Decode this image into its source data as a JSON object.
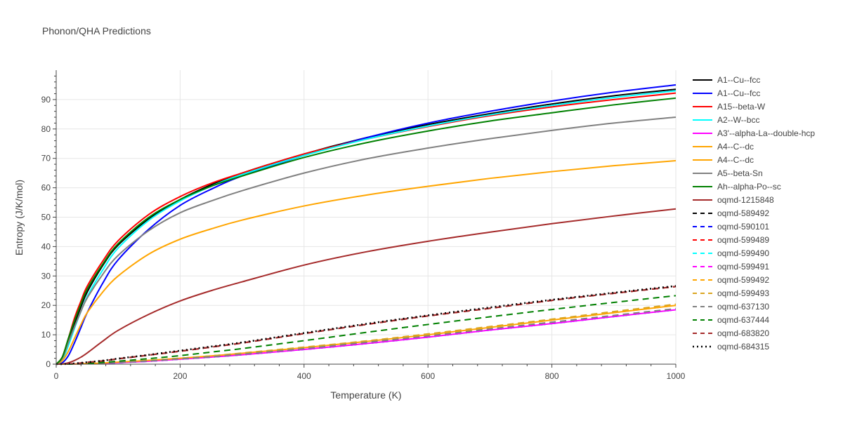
{
  "chart_data": {
    "type": "line",
    "title": "Phonon/QHA Predictions",
    "xlabel": "Temperature (K)",
    "ylabel": "Entropy (J/K/mol)",
    "xlim": [
      0,
      1000
    ],
    "ylim": [
      0,
      100
    ],
    "x_ticks": [
      0,
      200,
      400,
      600,
      800,
      1000
    ],
    "y_ticks": [
      0,
      10,
      20,
      30,
      40,
      50,
      60,
      70,
      80,
      90
    ],
    "grid": true,
    "legend_position": "right",
    "x": [
      0,
      10,
      20,
      30,
      40,
      50,
      75,
      100,
      150,
      200,
      250,
      300,
      400,
      500,
      600,
      700,
      800,
      900,
      1000
    ],
    "series": [
      {
        "name": "A1--Cu--fcc",
        "color": "#000000",
        "dash": "solid",
        "values": [
          0,
          2,
          8,
          14,
          19.5,
          24.5,
          33.5,
          40.5,
          49.5,
          56,
          61,
          65,
          71.5,
          77,
          81.5,
          85.2,
          88.5,
          91.3,
          93.5
        ]
      },
      {
        "name": "A1--Cu--fcc",
        "color": "#0000ff",
        "dash": "solid",
        "values": [
          0,
          0.5,
          3,
          7.5,
          12.5,
          17.5,
          27.5,
          35.5,
          46,
          54,
          59.5,
          64,
          71,
          77,
          82,
          86,
          89.5,
          92.5,
          95
        ]
      },
      {
        "name": "A15--beta-W",
        "color": "#ff0000",
        "dash": "solid",
        "values": [
          0,
          2.5,
          9,
          16,
          21.5,
          26.5,
          35,
          42,
          51,
          57,
          61.5,
          65,
          71.5,
          76.5,
          80.8,
          84.5,
          87.5,
          90,
          92.2
        ]
      },
      {
        "name": "A2--W--bcc",
        "color": "#00ffff",
        "dash": "solid",
        "values": [
          0,
          1.5,
          6.5,
          12.5,
          18,
          23,
          32,
          39.5,
          49,
          55.5,
          60.5,
          64.5,
          71,
          76.5,
          81,
          84.8,
          88,
          90.7,
          93
        ]
      },
      {
        "name": "A3'--alpha-La--double-hcp",
        "color": "#ff00ff",
        "dash": "solid",
        "values": [
          0,
          0,
          0,
          0.05,
          0.1,
          0.15,
          0.3,
          0.5,
          1.0,
          1.7,
          2.4,
          3.2,
          5.0,
          7.0,
          9.2,
          11.6,
          13.8,
          16.2,
          18.5
        ]
      },
      {
        "name": "A4--C--dc",
        "color": "#ffa500",
        "dash": "solid",
        "values": [
          0,
          0,
          0,
          0.05,
          0.1,
          0.2,
          0.4,
          0.7,
          1.3,
          2.0,
          2.8,
          3.7,
          5.6,
          7.7,
          10.0,
          12.5,
          15.0,
          17.5,
          20.0
        ]
      },
      {
        "name": "A4--C--dc",
        "color": "#ffa500",
        "dash": "solid",
        "values": [
          0,
          1.2,
          4.5,
          9,
          13.5,
          17.5,
          24.5,
          30,
          37.5,
          42.5,
          46,
          49,
          53.8,
          57.5,
          60.5,
          63.2,
          65.5,
          67.5,
          69.2
        ]
      },
      {
        "name": "A5--beta-Sn",
        "color": "#808080",
        "dash": "solid",
        "values": [
          0,
          2,
          7.5,
          13,
          18,
          22.5,
          30.5,
          37,
          45.5,
          51.5,
          55.5,
          59,
          65,
          69.8,
          73.5,
          76.7,
          79.5,
          82,
          84
        ]
      },
      {
        "name": "Ah--alpha-Po--sc",
        "color": "#008000",
        "dash": "solid",
        "values": [
          0,
          2.5,
          9,
          15,
          20.5,
          25.5,
          34,
          41,
          50,
          56,
          60.5,
          64,
          70.3,
          75.3,
          79.3,
          82.7,
          85.5,
          88.2,
          90.5
        ]
      },
      {
        "name": "oqmd-1215848",
        "color": "#a52a2a",
        "dash": "solid",
        "values": [
          0,
          0.1,
          0.5,
          1.3,
          2.4,
          3.8,
          7.8,
          11.5,
          17,
          21.5,
          25,
          28,
          33.7,
          38.2,
          41.8,
          44.9,
          47.8,
          50.4,
          52.8
        ]
      },
      {
        "name": "oqmd-589492",
        "color": "#000000",
        "dash": "dash",
        "values": [
          0,
          0,
          0.1,
          0.2,
          0.4,
          0.6,
          1.1,
          1.8,
          3.1,
          4.4,
          5.8,
          7.2,
          10.4,
          13.5,
          16.4,
          19.0,
          21.7,
          24.1,
          26.4
        ]
      },
      {
        "name": "oqmd-590101",
        "color": "#0000ff",
        "dash": "dash",
        "values": [
          0,
          0,
          0,
          0.05,
          0.1,
          0.15,
          0.3,
          0.5,
          1.0,
          1.7,
          2.4,
          3.2,
          5.0,
          7.0,
          9.2,
          11.6,
          13.8,
          16.2,
          18.5
        ]
      },
      {
        "name": "oqmd-599489",
        "color": "#ff0000",
        "dash": "dash",
        "values": [
          0,
          0,
          0.1,
          0.2,
          0.4,
          0.6,
          1.1,
          1.8,
          3.1,
          4.4,
          5.8,
          7.2,
          10.4,
          13.5,
          16.4,
          19.0,
          21.7,
          24.1,
          26.4
        ]
      },
      {
        "name": "oqmd-599490",
        "color": "#00ffff",
        "dash": "dash",
        "values": [
          0,
          0,
          0,
          0.05,
          0.1,
          0.15,
          0.3,
          0.5,
          1.0,
          1.7,
          2.4,
          3.2,
          5.0,
          7.0,
          9.2,
          11.6,
          13.8,
          16.2,
          18.5
        ]
      },
      {
        "name": "oqmd-599491",
        "color": "#ff00ff",
        "dash": "dash",
        "values": [
          0,
          0,
          0,
          0.05,
          0.1,
          0.15,
          0.3,
          0.5,
          1.0,
          1.7,
          2.4,
          3.2,
          5.0,
          7.0,
          9.2,
          11.6,
          13.8,
          16.2,
          18.5
        ]
      },
      {
        "name": "oqmd-599492",
        "color": "#ffa500",
        "dash": "dash",
        "values": [
          0,
          0,
          0,
          0.05,
          0.1,
          0.2,
          0.4,
          0.7,
          1.3,
          2.0,
          2.8,
          3.7,
          5.6,
          7.7,
          10.0,
          12.5,
          15.0,
          17.5,
          20.0
        ]
      },
      {
        "name": "oqmd-599493",
        "color": "#daa520",
        "dash": "dash",
        "values": [
          0,
          0,
          0,
          0.05,
          0.1,
          0.2,
          0.4,
          0.7,
          1.3,
          2.0,
          2.8,
          3.8,
          5.8,
          7.9,
          10.3,
          12.8,
          15.3,
          17.9,
          20.4
        ]
      },
      {
        "name": "oqmd-637130",
        "color": "#808080",
        "dash": "dash",
        "values": [
          0,
          0,
          0,
          0.05,
          0.1,
          0.15,
          0.35,
          0.6,
          1.1,
          1.8,
          2.5,
          3.4,
          5.3,
          7.4,
          9.6,
          12.0,
          14.3,
          16.6,
          18.9
        ]
      },
      {
        "name": "oqmd-637444",
        "color": "#008000",
        "dash": "dash",
        "values": [
          0,
          0,
          0,
          0.05,
          0.15,
          0.25,
          0.6,
          1.0,
          1.9,
          2.9,
          4.1,
          5.3,
          8.0,
          10.8,
          13.5,
          16.1,
          18.6,
          21.0,
          23.3
        ]
      },
      {
        "name": "oqmd-683820",
        "color": "#a52a2a",
        "dash": "dash",
        "values": [
          0,
          0,
          0.1,
          0.2,
          0.4,
          0.6,
          1.1,
          1.8,
          3.1,
          4.4,
          5.8,
          7.2,
          10.4,
          13.5,
          16.4,
          19.0,
          21.7,
          24.1,
          26.4
        ]
      },
      {
        "name": "oqmd-684315",
        "color": "#000000",
        "dash": "dot",
        "values": [
          0,
          0,
          0.1,
          0.25,
          0.45,
          0.65,
          1.2,
          1.9,
          3.2,
          4.6,
          6.0,
          7.4,
          10.6,
          13.7,
          16.6,
          19.3,
          21.9,
          24.3,
          26.6
        ]
      }
    ]
  }
}
